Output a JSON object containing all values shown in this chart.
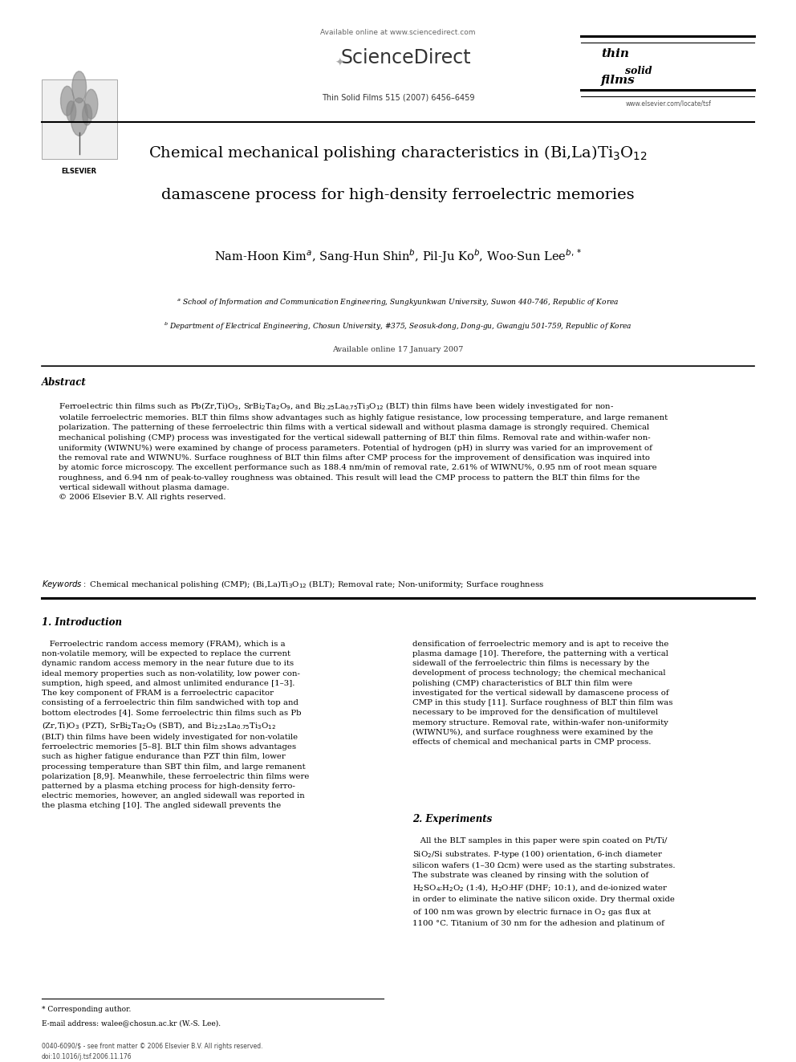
{
  "background_color": "#ffffff",
  "page_width": 9.92,
  "page_height": 13.23,
  "header_available": "Available online at www.sciencedirect.com",
  "header_journal": "Thin Solid Films 515 (2007) 6456–6459",
  "header_website": "www.elsevier.com/locate/tsf",
  "elsevier_label": "ELSEVIER",
  "sciencedirect_label": "ScienceDirect",
  "tsf_thin": "thin",
  "tsf_solid": "solid",
  "tsf_films": "films",
  "title1": "Chemical mechanical polishing characteristics in (Bi,La)Ti$_3$O$_{12}$",
  "title2": "damascene process for high-density ferroelectric memories",
  "authors": "Nam-Hoon Kim$^{a}$, Sang-Hun Shin$^{b}$, Pil-Ju Ko$^{b}$, Woo-Sun Lee$^{b,*}$",
  "affil_a": "$^{a}$ School of Information and Communication Engineering, Sungkyunkwan University, Suwon 440-746, Republic of Korea",
  "affil_b": "$^{b}$ Department of Electrical Engineering, Chosun University, #375, Seosuk-dong, Dong-gu, Gwangju 501-759, Republic of Korea",
  "available_online": "Available online 17 January 2007",
  "abstract_head": "Abstract",
  "abstract_body": "Ferroelectric thin films such as Pb(Zr,Ti)O$_3$, SrBi$_2$Ta$_2$O$_9$, and Bi$_{2.25}$La$_{0.75}$Ti$_3$O$_{12}$ (BLT) thin films have been widely investigated for non-\nvolatile ferroelectric memories. BLT thin films show advantages such as highly fatigue resistance, low processing temperature, and large remanent\npolarization. The patterning of these ferroelectric thin films with a vertical sidewall and without plasma damage is strongly required. Chemical\nmechanical polishing (CMP) process was investigated for the vertical sidewall patterning of BLT thin films. Removal rate and within-wafer non-\nuniformity (WIWNU%) were examined by change of process parameters. Potential of hydrogen (pH) in slurry was varied for an improvement of\nthe removal rate and WIWNU%. Surface roughness of BLT thin films after CMP process for the improvement of densification was inquired into\nby atomic force microscopy. The excellent performance such as 188.4 nm/min of removal rate, 2.61% of WIWNU%, 0.95 nm of root mean square\nroughness, and 6.94 nm of peak-to-valley roughness was obtained. This result will lead the CMP process to pattern the BLT thin films for the\nvertical sidewall without plasma damage.\n© 2006 Elsevier B.V. All rights reserved.",
  "keywords_line": "$\\it{Keywords:}$ Chemical mechanical polishing (CMP); (Bi,La)Ti$_3$O$_{12}$ (BLT); Removal rate; Non-uniformity; Surface roughness",
  "sec1_head": "1. Introduction",
  "sec1_col1_lines": [
    "   Ferroelectric random access memory (FRAM), which is a",
    "non-volatile memory, will be expected to replace the current",
    "dynamic random access memory in the near future due to its",
    "ideal memory properties such as non-volatility, low power con-",
    "sumption, high speed, and almost unlimited endurance [1–3].",
    "The key component of FRAM is a ferroelectric capacitor",
    "consisting of a ferroelectric thin film sandwiched with top and",
    "bottom electrodes [4]. Some ferroelectric thin films such as Pb",
    "(Zr,Ti)O$_3$ (PZT), SrBi$_2$Ta$_2$O$_9$ (SBT), and Bi$_{2.25}$La$_{0.75}$Ti$_3$O$_{12}$",
    "(BLT) thin films have been widely investigated for non-volatile",
    "ferroelectric memories [5–8]. BLT thin film shows advantages",
    "such as higher fatigue endurance than PZT thin film, lower",
    "processing temperature than SBT thin film, and large remanent",
    "polarization [8,9]. Meanwhile, these ferroelectric thin films were",
    "patterned by a plasma etching process for high-density ferro-",
    "electric memories, however, an angled sidewall was reported in",
    "the plasma etching [10]. The angled sidewall prevents the"
  ],
  "sec1_col2_lines": [
    "densification of ferroelectric memory and is apt to receive the",
    "plasma damage [10]. Therefore, the patterning with a vertical",
    "sidewall of the ferroelectric thin films is necessary by the",
    "development of process technology; the chemical mechanical",
    "polishing (CMP) characteristics of BLT thin film were",
    "investigated for the vertical sidewall by damascene process of",
    "CMP in this study [11]. Surface roughness of BLT thin film was",
    "necessary to be improved for the densification of multilevel",
    "memory structure. Removal rate, within-wafer non-uniformity",
    "(WIWNU%), and surface roughness were examined by the",
    "effects of chemical and mechanical parts in CMP process."
  ],
  "sec2_head": "2. Experiments",
  "sec2_col2_lines": [
    "   All the BLT samples in this paper were spin coated on Pt/Ti/",
    "SiO$_2$/Si substrates. P-type (100) orientation, 6-inch diameter",
    "silicon wafers (1–30 Ωcm) were used as the starting substrates.",
    "The substrate was cleaned by rinsing with the solution of",
    "H$_2$SO$_4$:H$_2$O$_2$ (1:4), H$_2$O:HF (DHF; 10:1), and de-ionized water",
    "in order to eliminate the native silicon oxide. Dry thermal oxide",
    "of 100 nm was grown by electric furnace in O$_2$ gas flux at",
    "1100 °C. Titanium of 30 nm for the adhesion and platinum of"
  ],
  "footnote1": "* Corresponding author.",
  "footnote2": "E-mail address: walee@chosun.ac.kr (W.-S. Lee).",
  "footer1": "0040-6090/$ - see front matter © 2006 Elsevier B.V. All rights reserved.",
  "footer2": "doi:10.1016/j.tsf.2006.11.176"
}
